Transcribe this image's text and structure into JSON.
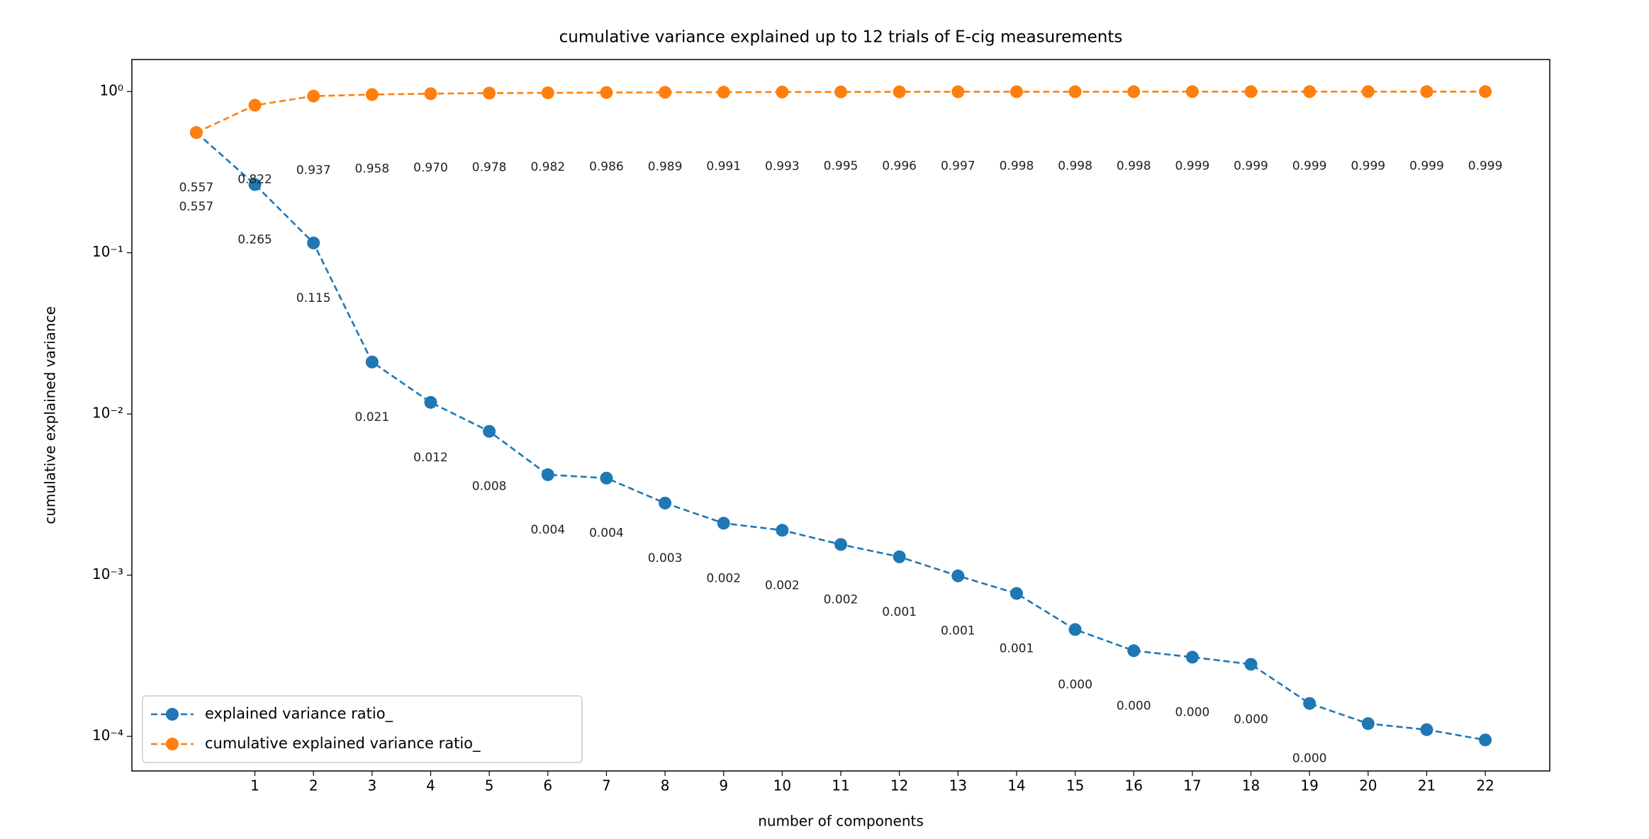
{
  "chart_data": {
    "type": "line",
    "title": "cumulative variance explained up to 12 trials of E-cig measurements",
    "x_label": "number of components",
    "y_label": "cumulative explained variance",
    "x": [
      0,
      1,
      2,
      3,
      4,
      5,
      6,
      7,
      8,
      9,
      10,
      11,
      12,
      13,
      14,
      15,
      16,
      17,
      18,
      19,
      20,
      21,
      22
    ],
    "xlim": [
      -1.1,
      23.1
    ],
    "xticks": [
      1,
      2,
      3,
      4,
      5,
      6,
      7,
      8,
      9,
      10,
      11,
      12,
      13,
      14,
      15,
      16,
      17,
      18,
      19,
      20,
      21,
      22
    ],
    "ylim": [
      6.1e-05,
      1.58
    ],
    "yscale": "log",
    "yticks": [
      {
        "value": 0.0001,
        "label": "10⁻⁴"
      },
      {
        "value": 0.001,
        "label": "10⁻³"
      },
      {
        "value": 0.01,
        "label": "10⁻²"
      },
      {
        "value": 0.1,
        "label": "10⁻¹"
      },
      {
        "value": 1,
        "label": "10⁰"
      }
    ],
    "grid": false,
    "legend": "lower left",
    "series": [
      {
        "name": "explained variance ratio_",
        "color": "#1f77b4",
        "values": [
          0.557,
          0.265,
          0.115,
          0.021,
          0.0118,
          0.0078,
          0.0042,
          0.004,
          0.0028,
          0.0021,
          0.0019,
          0.00155,
          0.0013,
          0.00099,
          0.00077,
          0.00046,
          0.00034,
          0.00031,
          0.00028,
          0.00016,
          0.00012,
          0.00011,
          9.5e-05
        ],
        "value_labels": [
          "0.557",
          "0.265",
          "0.115",
          "0.021",
          "0.012",
          "0.008",
          "0.004",
          "0.004",
          "0.003",
          "0.002",
          "0.002",
          "0.002",
          "0.001",
          "0.001",
          "0.001",
          "0.000",
          "0.000",
          "0.000",
          "0.000",
          "0.000",
          null,
          null,
          null
        ]
      },
      {
        "name": "cumulative explained variance ratio_",
        "color": "#ff7f0e",
        "values": [
          0.557,
          0.822,
          0.937,
          0.958,
          0.97,
          0.978,
          0.982,
          0.986,
          0.989,
          0.991,
          0.993,
          0.995,
          0.996,
          0.997,
          0.998,
          0.998,
          0.998,
          0.999,
          0.999,
          0.999,
          0.999,
          0.999,
          0.999
        ],
        "value_labels": [
          "0.557",
          "0.822",
          "0.937",
          "0.958",
          "0.970",
          "0.978",
          "0.982",
          "0.986",
          "0.989",
          "0.991",
          "0.993",
          "0.995",
          "0.996",
          "0.997",
          "0.998",
          "0.998",
          "0.998",
          "0.999",
          "0.999",
          "0.999",
          "0.999",
          "0.999",
          "0.999"
        ]
      }
    ]
  }
}
